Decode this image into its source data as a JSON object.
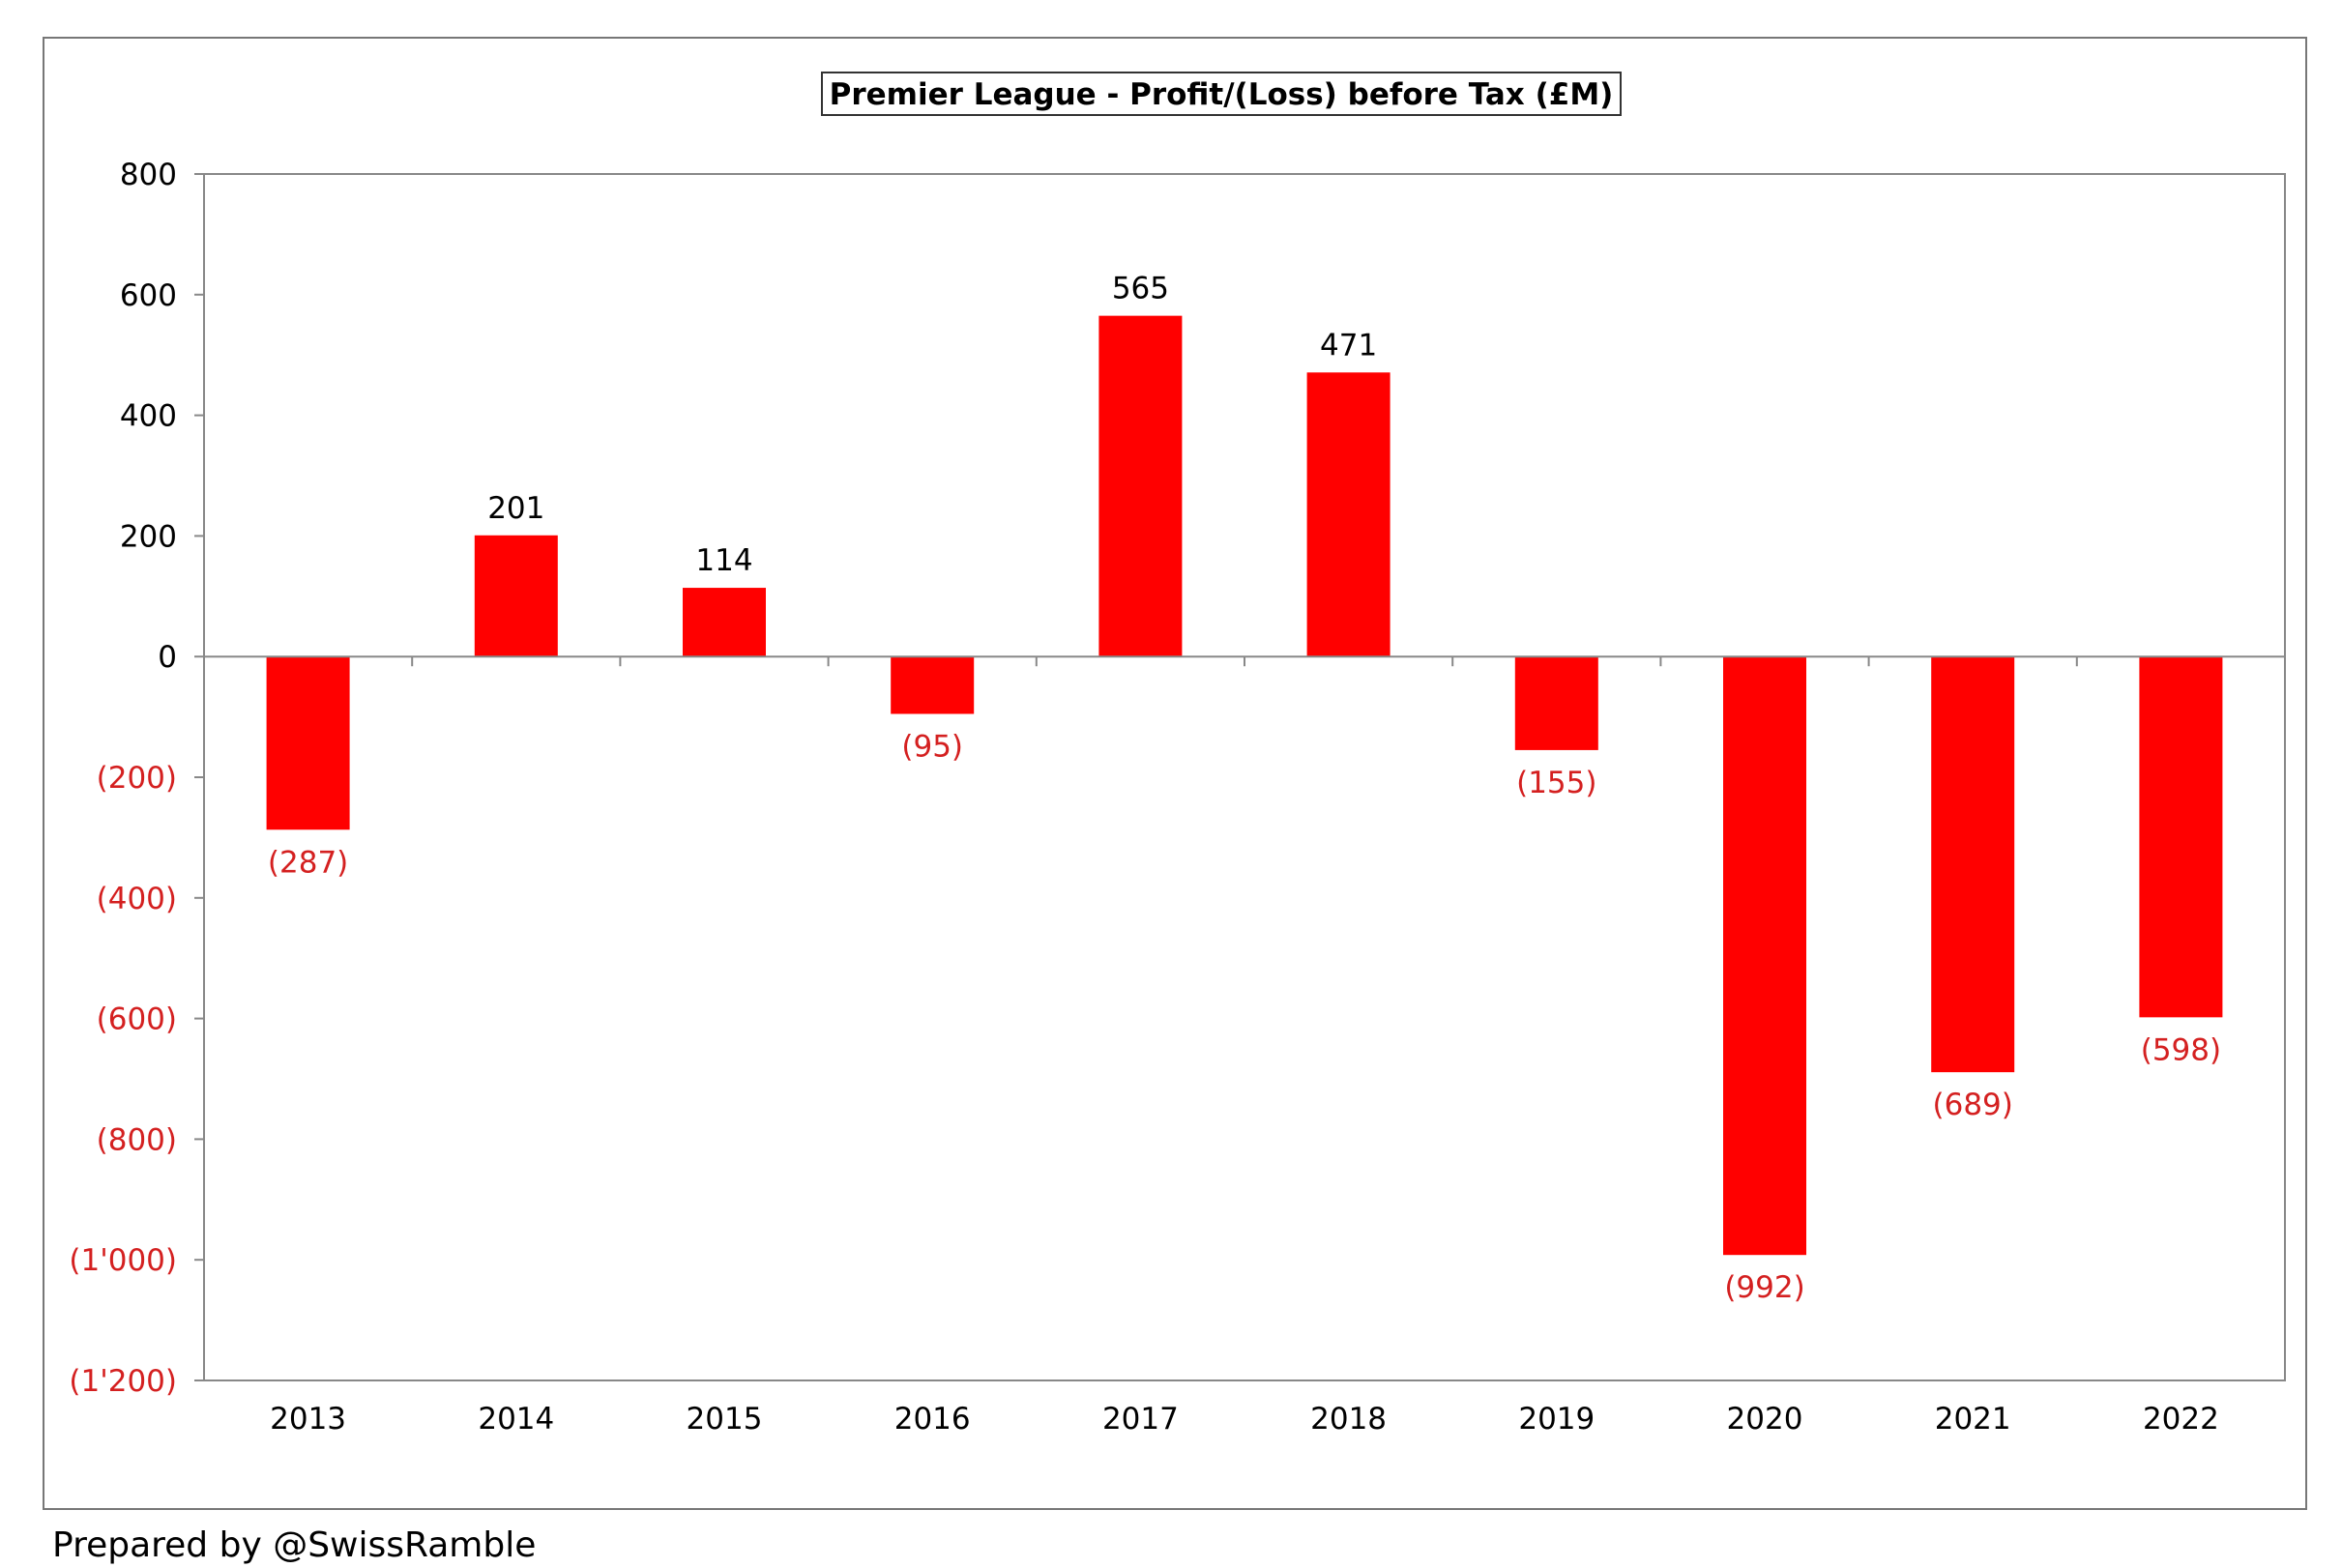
{
  "chart_data": {
    "type": "bar",
    "title": "Premier League - Profit/(Loss) before Tax (£M)",
    "categories": [
      "2013",
      "2014",
      "2015",
      "2016",
      "2017",
      "2018",
      "2019",
      "2020",
      "2021",
      "2022"
    ],
    "values": [
      -287,
      201,
      114,
      -95,
      565,
      471,
      -155,
      -992,
      -689,
      -598
    ],
    "value_labels": [
      "(287)",
      "201",
      "114",
      "(95)",
      "565",
      "471",
      "(155)",
      "(992)",
      "(689)",
      "(598)"
    ],
    "ylim": [
      -1200,
      800
    ],
    "yticks": [
      800,
      600,
      400,
      200,
      0,
      -200,
      -400,
      -600,
      -800,
      -1000,
      -1200
    ],
    "ytick_labels": [
      "800",
      "600",
      "400",
      "200",
      "0",
      "(200)",
      "(400)",
      "(600)",
      "(800)",
      "(1'000)",
      "(1'200)"
    ],
    "xlabel": "",
    "ylabel": "",
    "grid": false,
    "legend": "none",
    "colors": {
      "bar": "#ff0000",
      "negative_label": "#d42020",
      "positive_label": "#000000",
      "axis": "#888888"
    }
  },
  "footer": {
    "credit": "Prepared by @SwissRamble"
  }
}
